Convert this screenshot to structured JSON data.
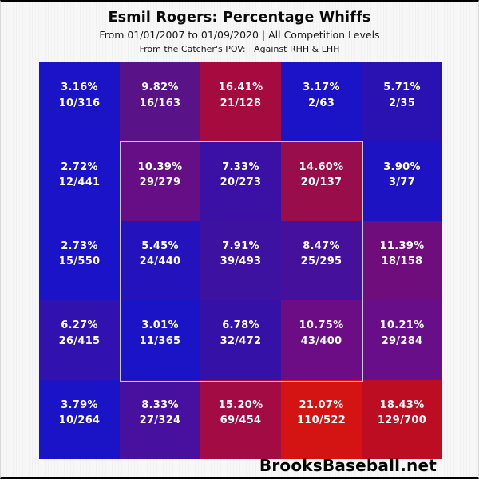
{
  "header": {
    "title": "Esmil Rogers: Percentage Whiffs",
    "subtitle": "From 01/01/2007 to 01/09/2020 | All Competition Levels",
    "pov_line": "From the Catcher's POV:   Against RHH & LHH"
  },
  "watermark": "BrooksBaseball.net",
  "chart_data": {
    "type": "heatmap",
    "title": "Esmil Rogers: Percentage Whiffs",
    "date_range": "01/01/2007 to 01/09/2020",
    "competition": "All Competition Levels",
    "perspective": "From the Catcher's POV",
    "batters": "Against RHH & LHH",
    "metric": "Percentage Whiffs (whiffs/pitches)",
    "grid_size": {
      "rows": 5,
      "cols": 5
    },
    "strike_zone": {
      "row_start": 1,
      "col_start": 1,
      "rows": 3,
      "cols": 3,
      "border_color": "#c6c8da"
    },
    "colormap": {
      "low": "#1a13c8",
      "mid": "#660e86",
      "high": "#d41313",
      "note": "blue = low whiff%, purple = mid, red = high whiff%"
    },
    "cells": [
      [
        {
          "pct": "3.16%",
          "frac": "10/316",
          "value": 3.16,
          "whiffs": 10,
          "pitches": 316,
          "color": "#1b13c6"
        },
        {
          "pct": "9.82%",
          "frac": "16/163",
          "value": 9.82,
          "whiffs": 16,
          "pitches": 163,
          "color": "#5a1288"
        },
        {
          "pct": "16.41%",
          "frac": "21/128",
          "value": 16.41,
          "whiffs": 21,
          "pitches": 128,
          "color": "#a50b3f"
        },
        {
          "pct": "3.17%",
          "frac": "2/63",
          "value": 3.17,
          "whiffs": 2,
          "pitches": 63,
          "color": "#1b13c6"
        },
        {
          "pct": "5.71%",
          "frac": "2/35",
          "value": 5.71,
          "whiffs": 2,
          "pitches": 35,
          "color": "#2a12b2"
        }
      ],
      [
        {
          "pct": "2.72%",
          "frac": "12/441",
          "value": 2.72,
          "whiffs": 12,
          "pitches": 441,
          "color": "#1a13c8"
        },
        {
          "pct": "10.39%",
          "frac": "29/279",
          "value": 10.39,
          "whiffs": 29,
          "pitches": 279,
          "color": "#660e86"
        },
        {
          "pct": "7.33%",
          "frac": "20/273",
          "value": 7.33,
          "whiffs": 20,
          "pitches": 273,
          "color": "#3a11a4"
        },
        {
          "pct": "14.60%",
          "frac": "20/137",
          "value": 14.6,
          "whiffs": 20,
          "pitches": 137,
          "color": "#990d4b"
        },
        {
          "pct": "3.90%",
          "frac": "3/77",
          "value": 3.9,
          "whiffs": 3,
          "pitches": 77,
          "color": "#1d13c2"
        }
      ],
      [
        {
          "pct": "2.73%",
          "frac": "15/550",
          "value": 2.73,
          "whiffs": 15,
          "pitches": 550,
          "color": "#1a13c8"
        },
        {
          "pct": "5.45%",
          "frac": "24/440",
          "value": 5.45,
          "whiffs": 24,
          "pitches": 440,
          "color": "#2413bc"
        },
        {
          "pct": "7.91%",
          "frac": "39/493",
          "value": 7.91,
          "whiffs": 39,
          "pitches": 493,
          "color": "#3d12a0"
        },
        {
          "pct": "8.47%",
          "frac": "25/295",
          "value": 8.47,
          "whiffs": 25,
          "pitches": 295,
          "color": "#44109c"
        },
        {
          "pct": "11.39%",
          "frac": "18/158",
          "value": 11.39,
          "whiffs": 18,
          "pitches": 158,
          "color": "#700d7c"
        }
      ],
      [
        {
          "pct": "6.27%",
          "frac": "26/415",
          "value": 6.27,
          "whiffs": 26,
          "pitches": 415,
          "color": "#3112ae"
        },
        {
          "pct": "3.01%",
          "frac": "11/365",
          "value": 3.01,
          "whiffs": 11,
          "pitches": 365,
          "color": "#1b13c6"
        },
        {
          "pct": "6.78%",
          "frac": "32/472",
          "value": 6.78,
          "whiffs": 32,
          "pitches": 472,
          "color": "#3611a8"
        },
        {
          "pct": "10.75%",
          "frac": "43/400",
          "value": 10.75,
          "whiffs": 43,
          "pitches": 400,
          "color": "#6d0d85"
        },
        {
          "pct": "10.21%",
          "frac": "29/284",
          "value": 10.21,
          "whiffs": 29,
          "pitches": 284,
          "color": "#670e88"
        }
      ],
      [
        {
          "pct": "3.79%",
          "frac": "10/264",
          "value": 3.79,
          "whiffs": 10,
          "pitches": 264,
          "color": "#1b13c6"
        },
        {
          "pct": "8.33%",
          "frac": "27/324",
          "value": 8.33,
          "whiffs": 27,
          "pitches": 324,
          "color": "#47109e"
        },
        {
          "pct": "15.20%",
          "frac": "69/454",
          "value": 15.2,
          "whiffs": 69,
          "pitches": 454,
          "color": "#a20b44"
        },
        {
          "pct": "21.07%",
          "frac": "110/522",
          "value": 21.07,
          "whiffs": 110,
          "pitches": 522,
          "color": "#d41313"
        },
        {
          "pct": "18.43%",
          "frac": "129/700",
          "value": 18.43,
          "whiffs": 129,
          "pitches": 700,
          "color": "#bd0d23"
        }
      ]
    ]
  }
}
